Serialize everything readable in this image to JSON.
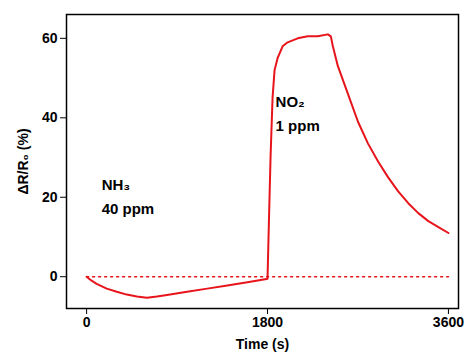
{
  "chart_data": {
    "type": "line",
    "xlabel": "Time (s)",
    "ylabel": "ΔR/R₀ (%)",
    "xlim": [
      -200,
      3700
    ],
    "ylim": [
      -8,
      66
    ],
    "xticks": [
      0,
      1800,
      3600
    ],
    "yticks": [
      0,
      20,
      40,
      60
    ],
    "grid": false,
    "series": [
      {
        "color": "#e8141b",
        "line_style": "solid",
        "x": [
          0,
          50,
          100,
          200,
          300,
          400,
          500,
          600,
          700,
          800,
          1000,
          1200,
          1400,
          1600,
          1790,
          1800,
          1810,
          1830,
          1850,
          1870,
          1900,
          1950,
          2000,
          2100,
          2200,
          2300,
          2400,
          2430,
          2450,
          2500,
          2600,
          2700,
          2800,
          2900,
          3000,
          3100,
          3200,
          3300,
          3400,
          3500,
          3600
        ],
        "values": [
          0,
          -1,
          -1.8,
          -3,
          -3.8,
          -4.5,
          -5,
          -5.3,
          -5.0,
          -4.6,
          -3.8,
          -3.0,
          -2.2,
          -1.4,
          -0.6,
          -0.5,
          10,
          30,
          45,
          52,
          55,
          58,
          59,
          60,
          60.5,
          60.5,
          61,
          60.5,
          58,
          53,
          46,
          39,
          33.5,
          29,
          25,
          21.5,
          18.5,
          16,
          14,
          12.5,
          11
        ]
      },
      {
        "color": "#e8141b",
        "line_style": "dotted",
        "x": [
          0,
          50,
          100,
          200,
          300,
          400,
          500,
          600,
          700,
          800,
          1000,
          1200,
          1400,
          1600,
          1790,
          1800,
          1810,
          1830,
          1850,
          1870,
          1900,
          1950,
          2000,
          2100,
          2200,
          2300,
          2400,
          2430,
          2450,
          2500,
          2600,
          2700,
          2800,
          2900,
          3000,
          3100,
          3200,
          3300,
          3400,
          3500,
          3600
        ],
        "values": [
          0,
          0,
          0,
          0,
          0,
          0,
          0,
          0,
          0,
          0,
          0,
          0,
          0,
          0,
          0,
          0,
          0,
          0,
          0,
          0,
          0,
          0,
          0,
          0,
          0,
          0,
          0,
          0,
          0,
          0,
          0,
          0,
          0,
          0,
          0,
          0,
          0,
          0,
          0,
          0,
          0
        ]
      }
    ],
    "annotations": [
      {
        "text": "NH₃",
        "x": 150,
        "y": 23
      },
      {
        "text": "40 ppm",
        "x": 150,
        "y": 17
      },
      {
        "text": "NO₂",
        "x": 1880,
        "y": 44
      },
      {
        "text": "1 ppm",
        "x": 1880,
        "y": 38
      }
    ]
  }
}
